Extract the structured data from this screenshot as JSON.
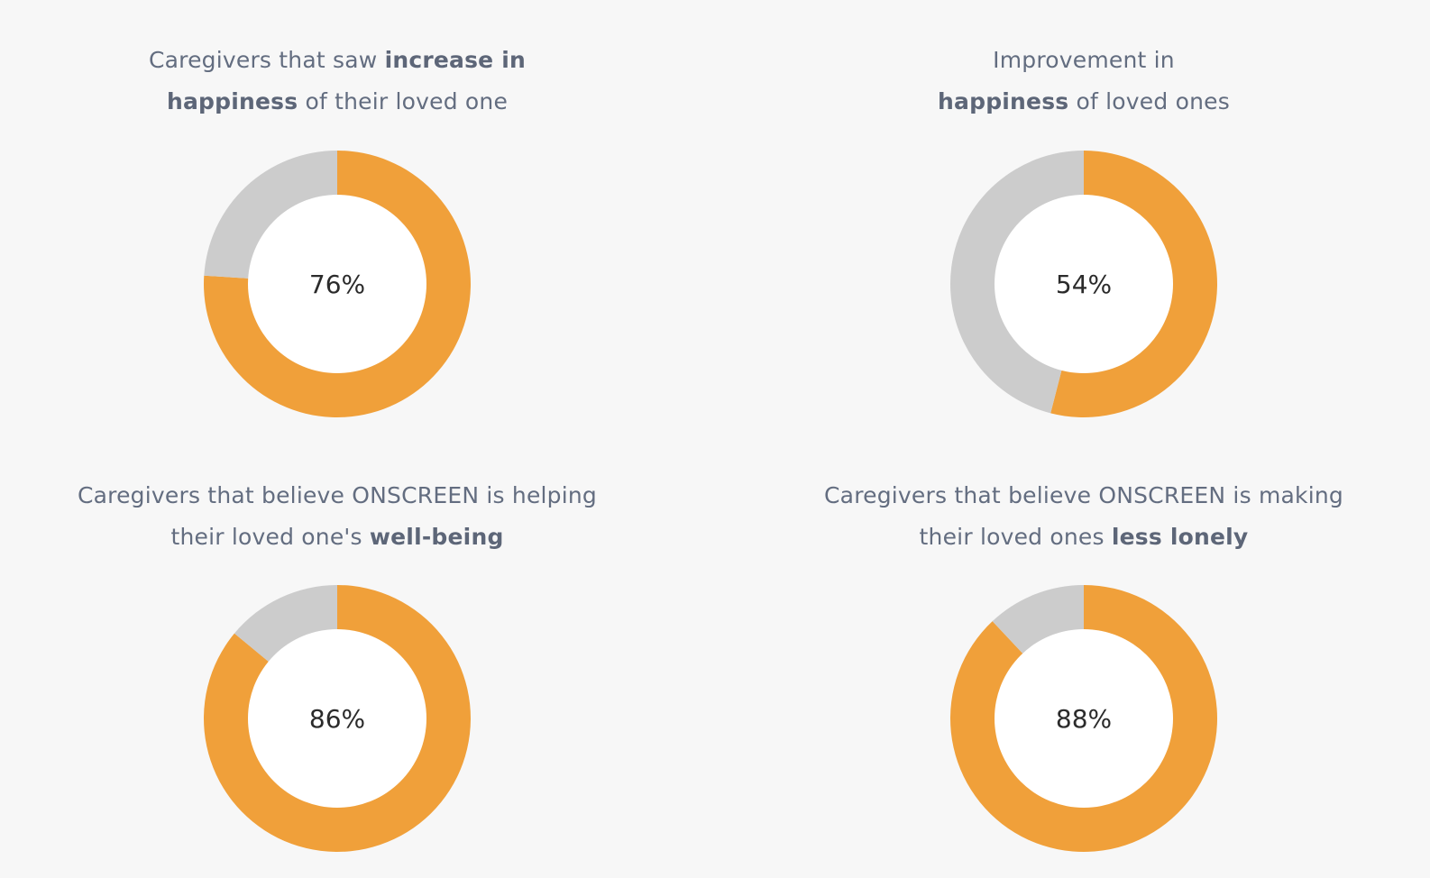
{
  "colors": {
    "filled": "#f0a03a",
    "remaining": "#cccccc",
    "center": "#ffffff",
    "title_text": "#636d80"
  },
  "chart_data": [
    {
      "type": "pie",
      "style": "donut",
      "title_segments": [
        {
          "text": "Caregivers that saw ",
          "bold": false
        },
        {
          "text": "increase in",
          "bold": true
        },
        {
          "text": "\n",
          "bold": false
        },
        {
          "text": "happiness",
          "bold": true
        },
        {
          "text": " of their loved one",
          "bold": false
        }
      ],
      "value": 76,
      "label": "76%"
    },
    {
      "type": "pie",
      "style": "donut",
      "title_segments": [
        {
          "text": "Improvement in",
          "bold": false
        },
        {
          "text": "\n",
          "bold": false
        },
        {
          "text": "happiness",
          "bold": true
        },
        {
          "text": " of loved ones",
          "bold": false
        }
      ],
      "value": 54,
      "label": "54%"
    },
    {
      "type": "pie",
      "style": "donut",
      "title_segments": [
        {
          "text": "Caregivers that believe ONSCREEN is helping",
          "bold": false
        },
        {
          "text": "\n",
          "bold": false
        },
        {
          "text": "their loved one's ",
          "bold": false
        },
        {
          "text": "well-being",
          "bold": true
        }
      ],
      "value": 86,
      "label": "86%"
    },
    {
      "type": "pie",
      "style": "donut",
      "title_segments": [
        {
          "text": "Caregivers that believe ONSCREEN is making",
          "bold": false
        },
        {
          "text": "\n",
          "bold": false
        },
        {
          "text": "their loved ones ",
          "bold": false
        },
        {
          "text": "less lonely",
          "bold": true
        }
      ],
      "value": 88,
      "label": "88%"
    }
  ]
}
